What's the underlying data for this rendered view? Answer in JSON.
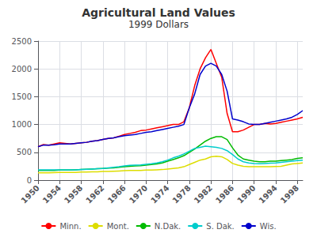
{
  "chart_data": {
    "type": "line",
    "title": "Agricultural Land Values",
    "subtitle": "1999 Dollars",
    "x": [
      1950,
      1951,
      1952,
      1953,
      1954,
      1955,
      1956,
      1957,
      1958,
      1959,
      1960,
      1961,
      1962,
      1963,
      1964,
      1965,
      1966,
      1967,
      1968,
      1969,
      1970,
      1971,
      1972,
      1973,
      1974,
      1975,
      1976,
      1977,
      1978,
      1979,
      1980,
      1981,
      1982,
      1983,
      1984,
      1985,
      1986,
      1987,
      1988,
      1989,
      1990,
      1991,
      1992,
      1993,
      1994,
      1995,
      1996,
      1997,
      1998,
      1999
    ],
    "series": [
      {
        "name": "Minn.",
        "color": "#ff0000",
        "values": [
          600,
          640,
          630,
          650,
          670,
          660,
          650,
          660,
          670,
          680,
          700,
          710,
          730,
          750,
          760,
          790,
          820,
          840,
          860,
          890,
          900,
          920,
          940,
          960,
          980,
          1000,
          1000,
          1050,
          1300,
          1700,
          2000,
          2200,
          2350,
          2100,
          1850,
          1200,
          870,
          870,
          900,
          950,
          1000,
          1000,
          1020,
          1010,
          1020,
          1040,
          1060,
          1080,
          1100,
          1130
        ]
      },
      {
        "name": "Mont.",
        "color": "#dddd00",
        "values": [
          130,
          130,
          130,
          135,
          140,
          140,
          140,
          140,
          145,
          145,
          150,
          150,
          155,
          155,
          160,
          165,
          170,
          175,
          175,
          175,
          180,
          180,
          185,
          190,
          200,
          210,
          220,
          240,
          280,
          320,
          360,
          380,
          420,
          430,
          420,
          370,
          300,
          270,
          250,
          240,
          240,
          240,
          240,
          240,
          245,
          250,
          270,
          290,
          300,
          310
        ]
      },
      {
        "name": "N.Dak.",
        "color": "#00bb00",
        "values": [
          175,
          175,
          175,
          175,
          180,
          180,
          180,
          185,
          190,
          195,
          200,
          205,
          210,
          215,
          220,
          230,
          240,
          250,
          255,
          260,
          270,
          280,
          290,
          310,
          340,
          370,
          400,
          440,
          500,
          560,
          630,
          700,
          750,
          780,
          780,
          730,
          580,
          450,
          380,
          360,
          340,
          330,
          330,
          340,
          340,
          350,
          360,
          370,
          390,
          400
        ]
      },
      {
        "name": "S. Dak.",
        "color": "#00cccc",
        "values": [
          185,
          185,
          185,
          185,
          185,
          185,
          185,
          185,
          190,
          195,
          200,
          205,
          210,
          220,
          230,
          240,
          255,
          265,
          270,
          275,
          285,
          295,
          310,
          330,
          360,
          400,
          430,
          470,
          520,
          570,
          590,
          610,
          600,
          590,
          570,
          530,
          460,
          380,
          330,
          310,
          300,
          295,
          300,
          305,
          310,
          320,
          330,
          340,
          350,
          360
        ]
      },
      {
        "name": "Wis.",
        "color": "#0000cc",
        "values": [
          600,
          630,
          630,
          635,
          650,
          650,
          650,
          660,
          670,
          680,
          700,
          710,
          730,
          750,
          760,
          780,
          800,
          810,
          820,
          840,
          860,
          870,
          890,
          910,
          930,
          950,
          970,
          1000,
          1300,
          1550,
          1900,
          2050,
          2100,
          2050,
          1900,
          1600,
          1100,
          1080,
          1050,
          1010,
          1000,
          1000,
          1020,
          1040,
          1060,
          1080,
          1100,
          1130,
          1180,
          1250
        ]
      }
    ],
    "xlim": [
      1950,
      1999
    ],
    "xticks": [
      1950,
      1954,
      1958,
      1962,
      1966,
      1970,
      1974,
      1978,
      1982,
      1986,
      1990,
      1994,
      1998
    ],
    "ylim": [
      0,
      2500
    ],
    "yticks": [
      0,
      500,
      1000,
      1500,
      2000,
      2500
    ],
    "grid": true,
    "legend": "bottom"
  }
}
